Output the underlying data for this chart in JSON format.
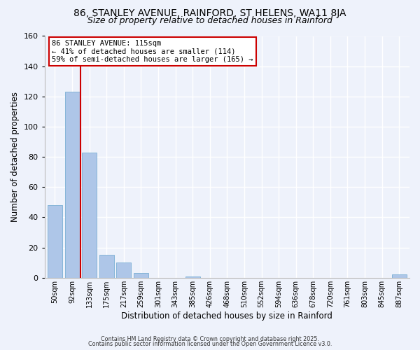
{
  "title": "86, STANLEY AVENUE, RAINFORD, ST HELENS, WA11 8JA",
  "subtitle": "Size of property relative to detached houses in Rainford",
  "xlabel": "Distribution of detached houses by size in Rainford",
  "ylabel": "Number of detached properties",
  "categories": [
    "50sqm",
    "92sqm",
    "133sqm",
    "175sqm",
    "217sqm",
    "259sqm",
    "301sqm",
    "343sqm",
    "385sqm",
    "426sqm",
    "468sqm",
    "510sqm",
    "552sqm",
    "594sqm",
    "636sqm",
    "678sqm",
    "720sqm",
    "761sqm",
    "803sqm",
    "845sqm",
    "887sqm"
  ],
  "values": [
    48,
    123,
    83,
    15,
    10,
    3,
    0,
    0,
    1,
    0,
    0,
    0,
    0,
    0,
    0,
    0,
    0,
    0,
    0,
    0,
    2
  ],
  "bar_color": "#aec6e8",
  "bar_edge_color": "#7aafd4",
  "vline_x": 1.5,
  "vline_color": "#cc0000",
  "annotation_line1": "86 STANLEY AVENUE: 115sqm",
  "annotation_line2": "← 41% of detached houses are smaller (114)",
  "annotation_line3": "59% of semi-detached houses are larger (165) →",
  "annotation_box_color": "#ffffff",
  "annotation_box_edge": "#cc0000",
  "ylim": [
    0,
    160
  ],
  "yticks": [
    0,
    20,
    40,
    60,
    80,
    100,
    120,
    140,
    160
  ],
  "footer1": "Contains HM Land Registry data © Crown copyright and database right 2025.",
  "footer2": "Contains public sector information licensed under the Open Government Licence v3.0.",
  "bg_color": "#eef2fb",
  "plot_bg_color": "#eef2fb",
  "title_fontsize": 10,
  "subtitle_fontsize": 9
}
